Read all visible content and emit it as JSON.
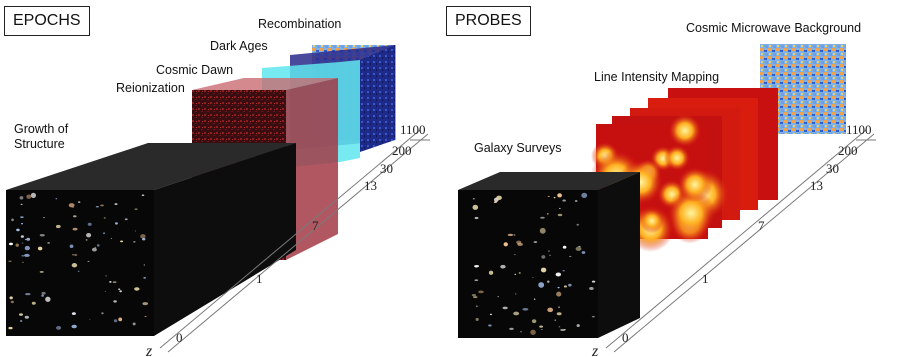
{
  "left_panel": {
    "title": "EPOCHS",
    "epochs": [
      {
        "label": "Recombination"
      },
      {
        "label": "Dark Ages"
      },
      {
        "label": "Cosmic Dawn"
      },
      {
        "label": "Reionization"
      },
      {
        "label": "Growth of Structure"
      }
    ],
    "axis": {
      "name": "z",
      "ticks": [
        "0",
        "1",
        "7",
        "13",
        "30",
        "200",
        "1100"
      ]
    }
  },
  "right_panel": {
    "title": "PROBES",
    "probes": [
      {
        "label": "Cosmic Microwave Background"
      },
      {
        "label": "Line Intensity Mapping"
      },
      {
        "label": "Galaxy Surveys"
      }
    ],
    "axis": {
      "name": "z",
      "ticks": [
        "0",
        "1",
        "7",
        "13",
        "30",
        "200",
        "1100"
      ]
    }
  },
  "colors": {
    "reionization_red": "#a23a45",
    "cosmic_dawn_cyan": "#5fe6ee",
    "dark_ages_navy": "#2a2a8c",
    "cmb_blue": "#3a66c8",
    "cmb_orange": "#f0a34a",
    "lim_yellow": "#ffd23a",
    "lim_red": "#c81010"
  }
}
